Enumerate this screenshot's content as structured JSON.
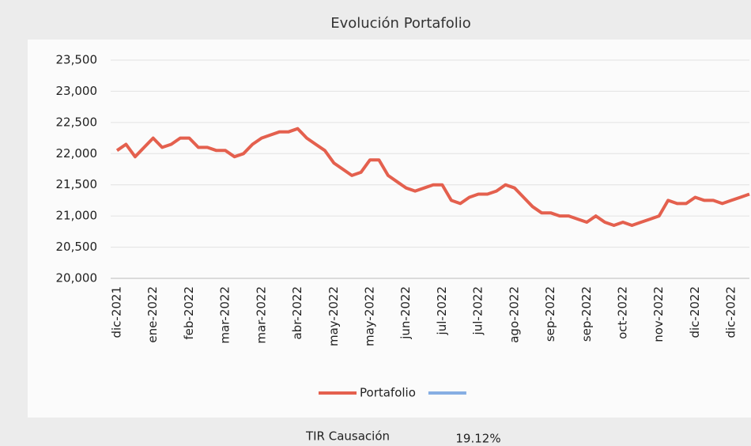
{
  "chart_data": {
    "type": "line",
    "title": "Evolución Portafolio",
    "categories": [
      "dic-2021",
      null,
      null,
      null,
      "ene-2022",
      null,
      null,
      null,
      "feb-2022",
      null,
      null,
      null,
      "mar-2022",
      null,
      null,
      null,
      "mar-2022",
      null,
      null,
      null,
      "abr-2022",
      null,
      null,
      null,
      "may-2022",
      null,
      null,
      null,
      "may-2022",
      null,
      null,
      null,
      "jun-2022",
      null,
      null,
      null,
      "jul-2022",
      null,
      null,
      null,
      "jul-2022",
      null,
      null,
      null,
      "ago-2022",
      null,
      null,
      null,
      "sep-2022",
      null,
      null,
      null,
      "sep-2022",
      null,
      null,
      null,
      "oct-2022",
      null,
      null,
      null,
      "nov-2022",
      null,
      null,
      null,
      "dic-2022",
      null,
      null,
      null,
      "dic-2022",
      null,
      null
    ],
    "series": [
      {
        "name": "Portafolio",
        "color": "#e4604e",
        "values": [
          22050,
          22150,
          21950,
          22100,
          22250,
          22100,
          22150,
          22250,
          22250,
          22100,
          22100,
          22050,
          22050,
          21950,
          22000,
          22150,
          22250,
          22300,
          22350,
          22350,
          22400,
          22250,
          22150,
          22050,
          21850,
          21750,
          21650,
          21700,
          21900,
          21900,
          21650,
          21550,
          21450,
          21400,
          21450,
          21500,
          21500,
          21250,
          21200,
          21300,
          21350,
          21350,
          21400,
          21500,
          21450,
          21300,
          21150,
          21050,
          21050,
          21000,
          21000,
          20950,
          20900,
          21000,
          20900,
          20850,
          20900,
          20850,
          20900,
          20950,
          21000,
          21250,
          21200,
          21200,
          21300,
          21250,
          21250,
          21200,
          21250,
          21300,
          21350
        ]
      },
      {
        "name": null,
        "color": "#86aee3",
        "values": [
          null,
          null,
          null,
          null,
          null,
          null,
          null,
          null,
          null,
          null,
          null,
          null,
          null,
          null,
          null,
          null,
          null,
          null,
          null,
          null,
          null,
          null,
          null,
          null,
          null,
          null,
          null,
          null,
          null,
          null,
          null,
          null,
          null,
          null,
          null,
          null,
          null,
          null,
          null,
          null,
          null,
          null,
          null,
          null,
          null,
          null,
          null,
          null,
          null,
          null,
          null,
          null,
          null,
          null,
          null,
          null,
          null,
          null,
          null,
          null,
          null,
          null,
          null,
          null,
          null,
          null,
          null,
          null,
          null,
          null,
          null
        ]
      }
    ],
    "ylim": [
      20000,
      23500
    ],
    "yticks": [
      {
        "value": 20000,
        "label": "20,000"
      },
      {
        "value": 20500,
        "label": "20,500"
      },
      {
        "value": 21000,
        "label": "21,000"
      },
      {
        "value": 21500,
        "label": "21,500"
      },
      {
        "value": 22000,
        "label": "22,000"
      },
      {
        "value": 22500,
        "label": "22,500"
      },
      {
        "value": 23000,
        "label": "23,000"
      },
      {
        "value": 23500,
        "label": "23,500"
      }
    ],
    "grid": true,
    "legend": "bottom"
  },
  "footer": {
    "label": "TIR Causación",
    "value": "19.12%"
  }
}
